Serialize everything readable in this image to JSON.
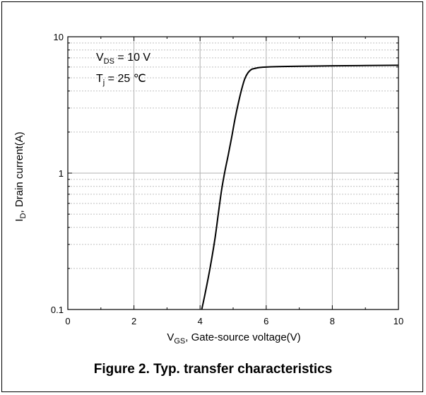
{
  "chart_data": {
    "type": "line",
    "title": "",
    "xlabel": {
      "main": "V",
      "sub": "GS",
      "rest": ", Gate-source voltage(V)"
    },
    "ylabel": {
      "main": "I",
      "sub": "D",
      "rest": ", Drain current(A)"
    },
    "xlim": [
      0,
      10
    ],
    "ylim": [
      0.1,
      10
    ],
    "yscale": "log",
    "xticks": [
      "0",
      "2",
      "4",
      "6",
      "8",
      "10"
    ],
    "yticks": [
      "0.1",
      "1",
      "10"
    ],
    "grid": true,
    "annotations": [
      {
        "main": "V",
        "sub": "DS",
        "rest": " = 10 V"
      },
      {
        "main": "T",
        "sub": "j",
        "rest": " = 25 ℃"
      }
    ],
    "series": [
      {
        "x": [
          4.05,
          4.15,
          4.3,
          4.45,
          4.55,
          4.65,
          4.75,
          4.85,
          4.95,
          5.05,
          5.15,
          5.25,
          5.35,
          5.45,
          5.55,
          5.65,
          5.8,
          6.0,
          6.5,
          7.0,
          8.0,
          9.0,
          10.0
        ],
        "y": [
          0.1,
          0.13,
          0.2,
          0.33,
          0.5,
          0.75,
          1.03,
          1.35,
          1.8,
          2.45,
          3.2,
          4.05,
          4.9,
          5.45,
          5.75,
          5.85,
          5.95,
          6.0,
          6.05,
          6.08,
          6.12,
          6.15,
          6.18
        ],
        "color": "#000000"
      }
    ]
  },
  "caption": "Figure 2. Typ. transfer characteristics"
}
